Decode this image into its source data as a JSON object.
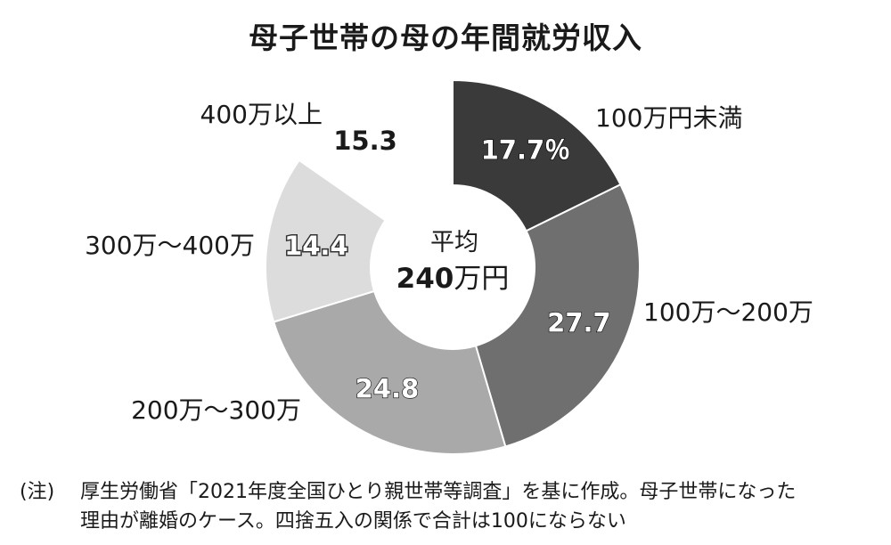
{
  "chart_data": {
    "type": "pie",
    "title": "母子世帯の母の年間就労収入",
    "unit": "%",
    "center_label": {
      "line1": "平均",
      "value": "240",
      "unit": "万円"
    },
    "categories": [
      "100万円未満",
      "100万～200万",
      "200万～300万",
      "300万～400万",
      "400万以上"
    ],
    "values": [
      17.7,
      27.7,
      24.8,
      14.4,
      15.3
    ],
    "value_labels": [
      "17.7％",
      "27.7",
      "24.8",
      "14.4",
      "15.3"
    ],
    "colors": [
      "#3a3a3a",
      "#6f6f6f",
      "#a9a9a9",
      "#dcdcdc",
      "#ffffff"
    ],
    "note_label": "(注)",
    "note_lines": [
      "厚生労働省「2021年度全国ひとり親世帯等調査」を基に作成。母子世帯になった",
      "理由が離婚のケース。四捨五入の関係で合計は100にならない"
    ]
  }
}
